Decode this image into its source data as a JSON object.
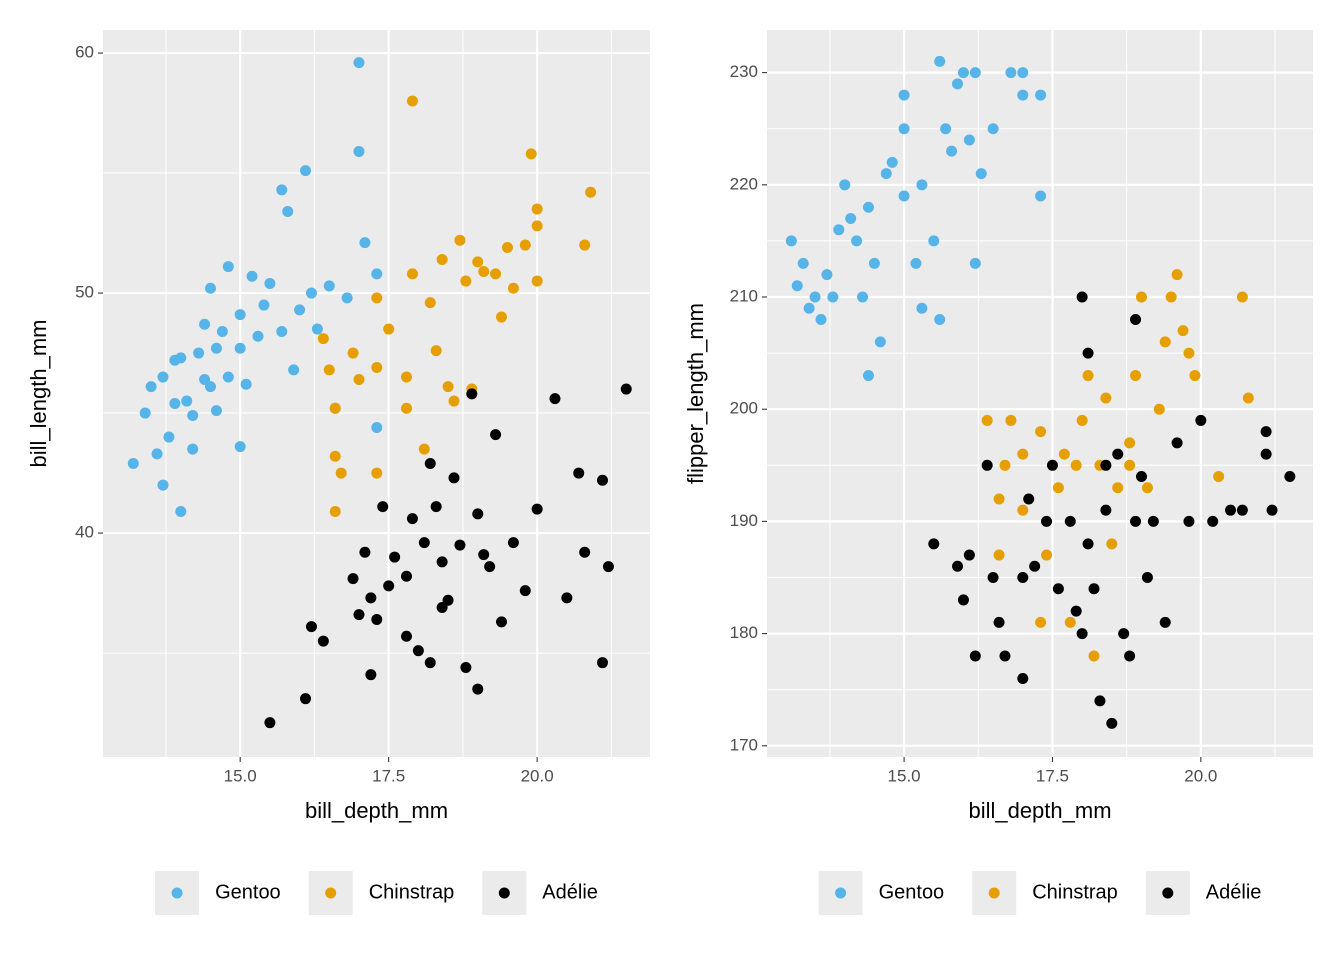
{
  "chart_data": [
    {
      "type": "scatter",
      "x_label": "bill_depth_mm",
      "y_label": "bill_length_mm",
      "xlim": [
        12.69,
        21.9
      ],
      "ylim": [
        30.67,
        60.96
      ],
      "xticks": [
        {
          "value": 15,
          "label": "15.0"
        },
        {
          "value": 17.5,
          "label": "17.5"
        },
        {
          "value": 20,
          "label": "20.0"
        }
      ],
      "yticks": [
        40,
        50,
        60
      ],
      "grid": true,
      "legend": "bottom",
      "series": [
        {
          "name": "Gentoo",
          "color": "#56B4E9",
          "x": [
            13.2,
            13.4,
            13.5,
            13.6,
            13.7,
            13.7,
            13.8,
            13.9,
            13.9,
            14,
            14,
            14.1,
            14.2,
            14.2,
            14.3,
            14.4,
            14.4,
            14.5,
            14.5,
            14.6,
            14.6,
            14.7,
            14.8,
            14.8,
            15,
            15,
            15,
            15.1,
            15.2,
            15.3,
            15.4,
            15.5,
            15.7,
            15.7,
            15.8,
            16,
            16.1,
            16.2,
            16.3,
            16.5,
            17,
            17,
            17.1,
            17.3,
            17.3,
            16.6,
            15.9,
            16.8
          ],
          "values": [
            42.9,
            45,
            46.1,
            43.3,
            46.5,
            42,
            44,
            47.2,
            45.4,
            47.3,
            40.9,
            45.5,
            43.5,
            44.9,
            47.5,
            46.4,
            48.7,
            50.2,
            46.1,
            47.7,
            45.1,
            48.4,
            46.5,
            51.1,
            43.6,
            47.7,
            49.1,
            46.2,
            50.7,
            48.2,
            49.5,
            50.4,
            48.4,
            54.3,
            53.4,
            49.3,
            55.1,
            50,
            48.5,
            50.3,
            59.6,
            55.9,
            52.1,
            50.8,
            44.4,
            45.2,
            46.8,
            49.8
          ]
        },
        {
          "name": "Chinstrap",
          "color": "#E69F00",
          "x": [
            16.4,
            16.5,
            16.6,
            16.6,
            16.7,
            16.6,
            16.9,
            17,
            17.3,
            17.3,
            17.3,
            17.5,
            17.8,
            17.8,
            17.9,
            17.9,
            18.1,
            18.2,
            18.3,
            18.4,
            18.5,
            18.7,
            18.8,
            18.9,
            19,
            19.3,
            19.4,
            19.5,
            19.6,
            19.8,
            19.9,
            20,
            20,
            20.8,
            20.9,
            18.6,
            19.1,
            20
          ],
          "values": [
            48.1,
            46.8,
            45.2,
            43.2,
            42.5,
            40.9,
            47.5,
            46.4,
            49.8,
            46.9,
            42.5,
            48.5,
            45.2,
            46.5,
            58,
            50.8,
            43.5,
            49.6,
            47.6,
            51.4,
            46.1,
            52.2,
            50.5,
            46,
            51.3,
            50.8,
            49,
            51.9,
            50.2,
            52,
            55.8,
            53.5,
            52.8,
            52,
            54.2,
            45.5,
            50.9,
            50.5
          ]
        },
        {
          "name": "Adélie",
          "color": "#000000",
          "x": [
            15.5,
            16.1,
            16.2,
            16.4,
            16.9,
            17,
            17.1,
            17.2,
            17.3,
            17.4,
            17.5,
            17.6,
            17.8,
            17.9,
            18,
            18.1,
            18.2,
            18.3,
            18.4,
            18.5,
            18.6,
            18.7,
            18.8,
            18.9,
            19,
            19,
            19.2,
            19.3,
            19.4,
            19.6,
            19.8,
            20,
            20.3,
            20.5,
            20.7,
            20.8,
            21.1,
            21.1,
            21.2,
            21.5,
            17.8,
            18.2,
            17.2,
            19.1,
            18.4
          ],
          "values": [
            32.1,
            33.1,
            36.1,
            35.5,
            38.1,
            36.6,
            39.2,
            34.1,
            36.4,
            41.1,
            37.8,
            39,
            38.2,
            40.6,
            35.1,
            39.6,
            34.6,
            41.1,
            38.8,
            37.2,
            42.3,
            39.5,
            34.4,
            45.8,
            33.5,
            40.8,
            38.6,
            44.1,
            36.3,
            39.6,
            37.6,
            41,
            45.6,
            37.3,
            42.5,
            39.2,
            34.6,
            42.2,
            38.6,
            46,
            35.7,
            42.9,
            37.3,
            39.1,
            36.9
          ]
        }
      ]
    },
    {
      "type": "scatter",
      "x_label": "bill_depth_mm",
      "y_label": "flipper_length_mm",
      "xlim": [
        12.69,
        21.89
      ],
      "ylim": [
        169.0,
        233.8
      ],
      "xticks": [
        {
          "value": 15,
          "label": "15.0"
        },
        {
          "value": 17.5,
          "label": "17.5"
        },
        {
          "value": 20,
          "label": "20.0"
        }
      ],
      "yticks": [
        170,
        180,
        190,
        200,
        210,
        220,
        230
      ],
      "grid": true,
      "legend": "bottom",
      "series": [
        {
          "name": "Gentoo",
          "color": "#56B4E9",
          "x": [
            13.1,
            13.2,
            13.3,
            13.4,
            13.5,
            13.6,
            13.7,
            13.8,
            13.9,
            14,
            14.1,
            14.2,
            14.3,
            14.4,
            14.4,
            14.5,
            14.6,
            14.8,
            15,
            15,
            15,
            15.2,
            15.3,
            15.5,
            15.6,
            15.6,
            15.7,
            15.8,
            15.9,
            16,
            16.1,
            16.2,
            16.3,
            16.5,
            16.8,
            17,
            17,
            17.3,
            17.3,
            16.2,
            15.3,
            14.7
          ],
          "values": [
            215,
            211,
            213,
            209,
            210,
            208,
            212,
            210,
            216,
            220,
            217,
            215,
            210,
            203,
            218,
            213,
            206,
            222,
            228,
            219,
            225,
            213,
            220,
            215,
            231,
            208,
            225,
            223,
            229,
            230,
            224,
            230,
            221,
            225,
            230,
            228,
            230,
            219,
            228,
            213,
            209,
            221
          ]
        },
        {
          "name": "Chinstrap",
          "color": "#E69F00",
          "x": [
            16.4,
            16.6,
            16.6,
            16.7,
            16.8,
            17,
            17,
            17.3,
            17.3,
            17.4,
            17.6,
            17.8,
            17.9,
            18,
            18.1,
            18.2,
            18.3,
            18.4,
            18.5,
            18.6,
            18.8,
            18.9,
            19,
            19.1,
            19.3,
            19.4,
            19.5,
            19.6,
            19.7,
            19.8,
            19.9,
            20.3,
            20.7,
            20.8,
            18.8,
            17.7
          ],
          "values": [
            199,
            192,
            187,
            195,
            199,
            196,
            191,
            181,
            198,
            187,
            193,
            181,
            195,
            199,
            203,
            178,
            195,
            201,
            188,
            193,
            197,
            203,
            210,
            193,
            200,
            206,
            210,
            212,
            207,
            205,
            203,
            194,
            210,
            201,
            195,
            196
          ]
        },
        {
          "name": "Adélie",
          "color": "#000000",
          "x": [
            15.5,
            15.9,
            16,
            16.1,
            16.2,
            16.4,
            16.5,
            16.6,
            16.7,
            17,
            17,
            17.1,
            17.2,
            17.4,
            17.6,
            17.8,
            17.9,
            18,
            18.1,
            18.2,
            18.3,
            18.4,
            18.5,
            18.6,
            18.7,
            18.8,
            18.9,
            19,
            19.1,
            19.2,
            19.4,
            19.6,
            19.8,
            20,
            20.2,
            20.5,
            20.7,
            21.1,
            21.1,
            21.2,
            21.5,
            18,
            18.1,
            17.5,
            18.4,
            18.9
          ],
          "values": [
            188,
            186,
            183,
            187,
            178,
            195,
            185,
            181,
            178,
            176,
            185,
            192,
            186,
            190,
            184,
            190,
            182,
            180,
            188,
            184,
            174,
            191,
            172,
            196,
            180,
            178,
            208,
            194,
            185,
            190,
            181,
            197,
            190,
            199,
            190,
            191,
            191,
            196,
            198,
            191,
            194,
            210,
            205,
            195,
            195,
            190
          ]
        }
      ]
    }
  ]
}
